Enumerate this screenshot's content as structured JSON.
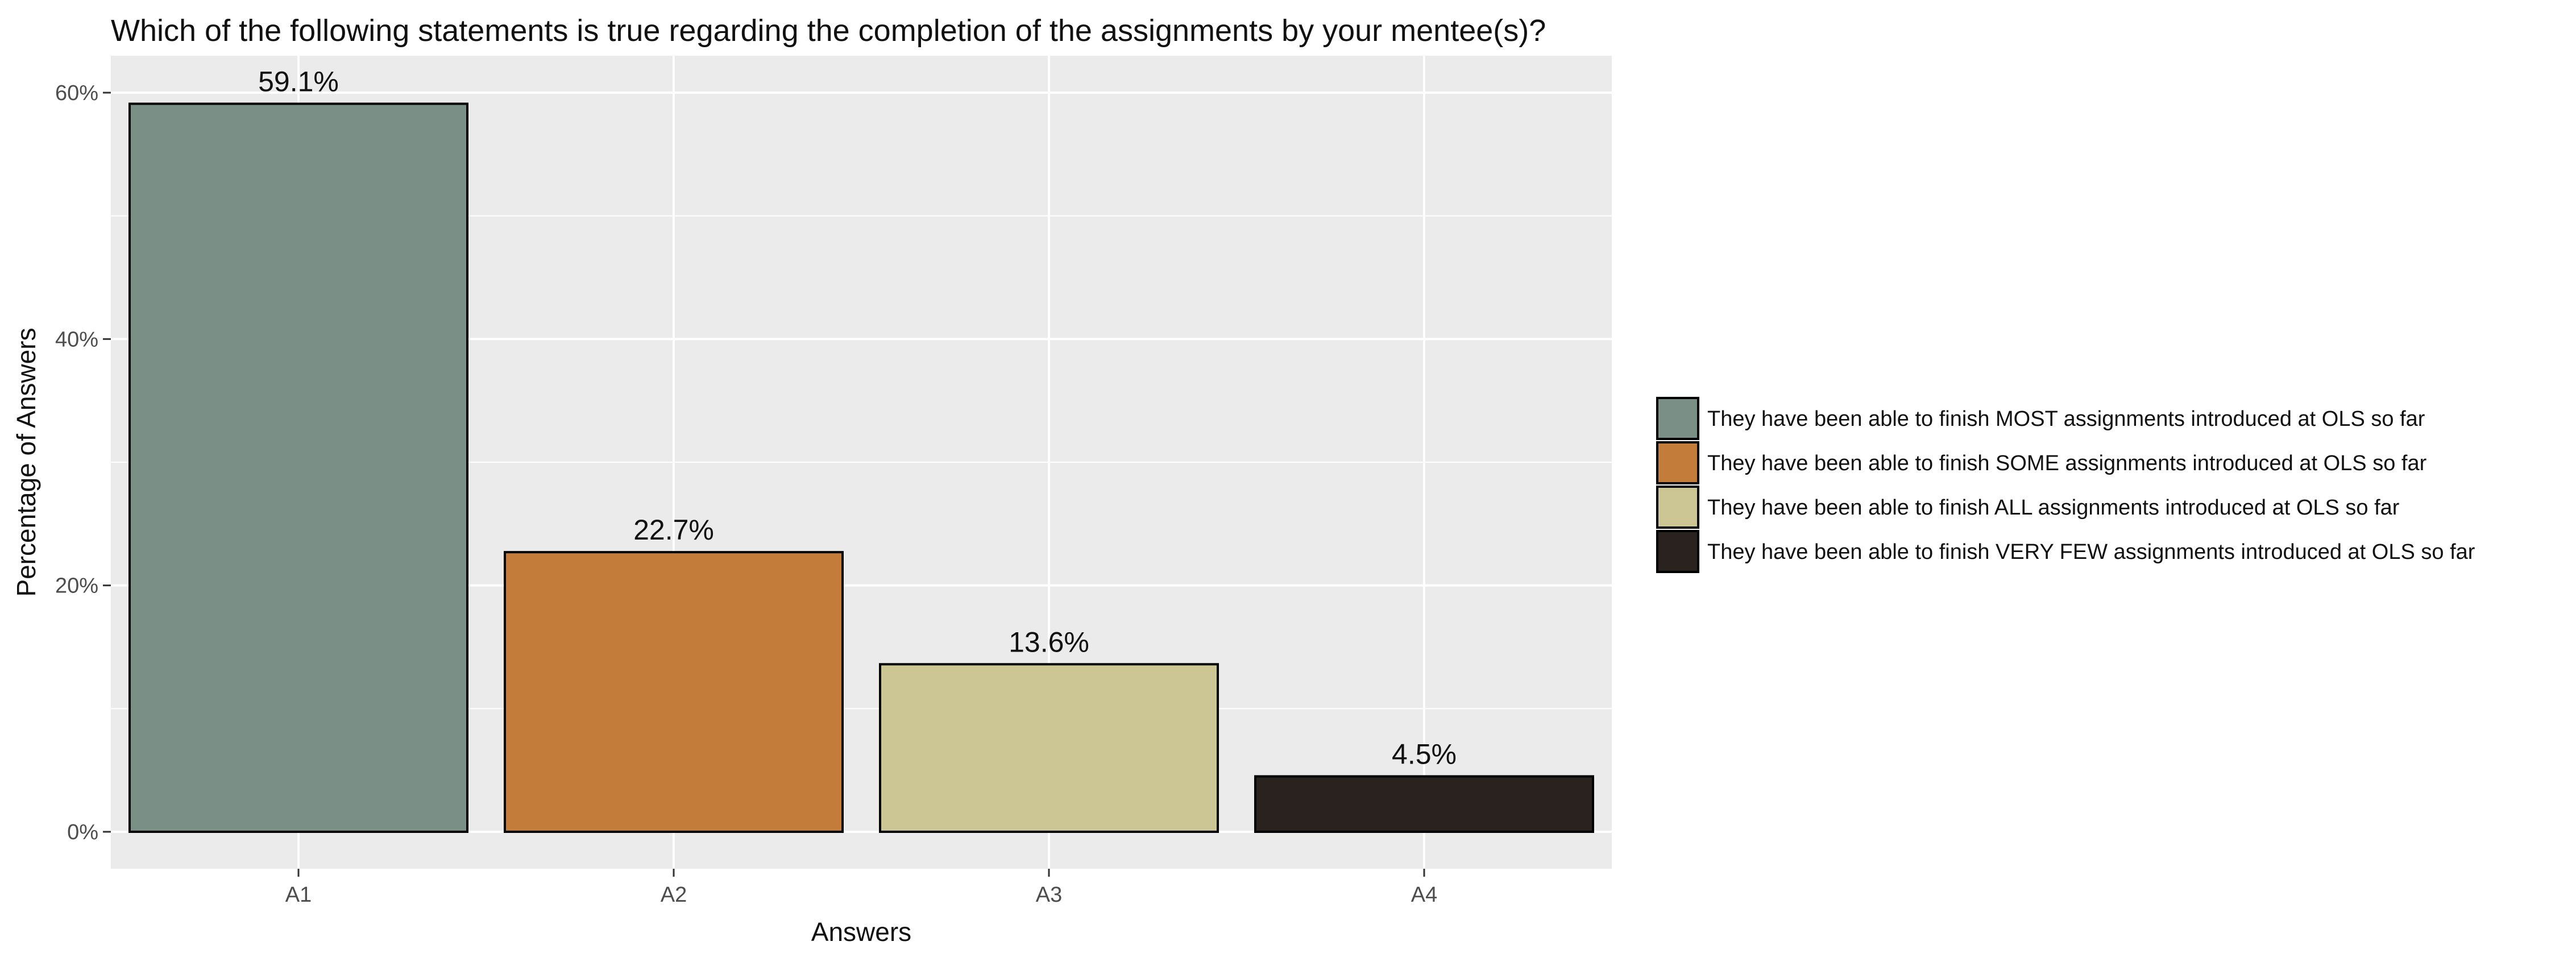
{
  "chart_data": {
    "type": "bar",
    "title": "Which of the following statements is true regarding the completion of the assignments by your mentee(s)?",
    "xlabel": "Answers",
    "ylabel": "Percentage of Answers",
    "categories": [
      "A1",
      "A2",
      "A3",
      "A4"
    ],
    "values": [
      59.1,
      22.7,
      13.6,
      4.5
    ],
    "value_labels": [
      "59.1%",
      "22.7%",
      "13.6%",
      "4.5%"
    ],
    "ylim": [
      -3,
      63
    ],
    "yticks": [
      0,
      20,
      40,
      60
    ],
    "ytick_labels": [
      "0%",
      "20%",
      "40%",
      "60%"
    ],
    "grid": true,
    "legend_position": "right",
    "legend": [
      "They have been able to finish MOST assignments introduced at OLS so far",
      "They have been able to finish SOME assignments introduced at OLS so far",
      "They have been able to finish ALL assignments introduced at OLS so far",
      "They have been able to finish VERY FEW assignments introduced at OLS so far"
    ],
    "colors": [
      "#7a8f86",
      "#c47c3a",
      "#ccc594",
      "#2a221f"
    ],
    "panel_color": "#ebebeb",
    "grid_color": "#ffffff"
  }
}
